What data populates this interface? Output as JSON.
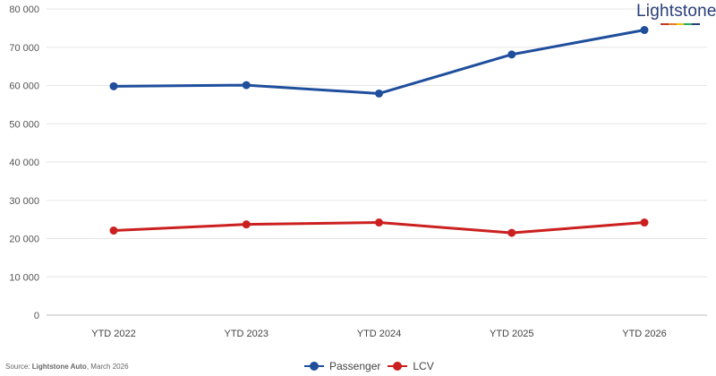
{
  "logo": {
    "text": "Lightstone",
    "underline_colors": [
      "#c0392b",
      "#e67e22",
      "#f1c40f",
      "#27ae60",
      "#2a3f7a"
    ]
  },
  "source": {
    "prefix": "Source: ",
    "bold": "Lightstone Auto",
    "suffix": ", March 2026"
  },
  "chart_data": {
    "type": "line",
    "title": "",
    "xlabel": "",
    "ylabel": "",
    "categories": [
      "YTD 2022",
      "YTD 2023",
      "YTD 2024",
      "YTD 2025",
      "YTD 2026"
    ],
    "ylim": [
      0,
      80000
    ],
    "yticks": [
      0,
      10000,
      20000,
      30000,
      40000,
      50000,
      60000,
      70000,
      80000
    ],
    "ytick_labels": [
      "0",
      "10 000",
      "20 000",
      "30 000",
      "40 000",
      "50 000",
      "60 000",
      "70 000",
      "80 000"
    ],
    "grid": "horizontal",
    "legend_position": "bottom",
    "series": [
      {
        "name": "Passenger",
        "color": "#1f4e9c",
        "values": [
          59800,
          60100,
          57900,
          68100,
          74500
        ]
      },
      {
        "name": "LCV",
        "color": "#cc2020",
        "values": [
          22100,
          23700,
          24200,
          21500,
          24200
        ]
      }
    ]
  }
}
